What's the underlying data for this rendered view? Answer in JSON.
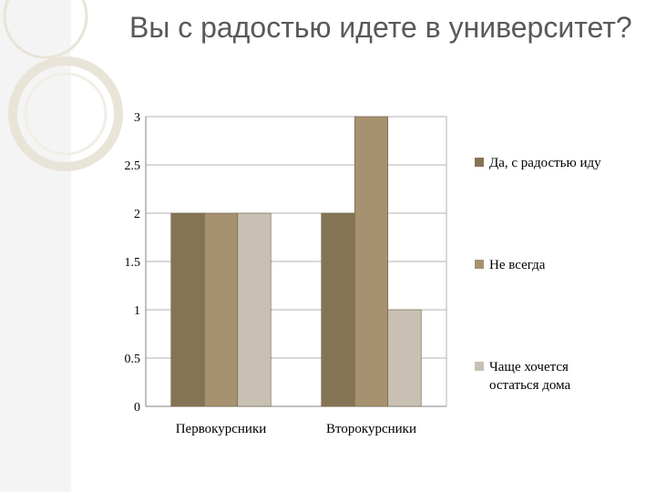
{
  "slide": {
    "title": "Вы с радостью идете в университет?"
  },
  "colors": {
    "sidebar": "#f4f4f4",
    "deco_ring": "#e9e4d8",
    "grid": "#b3b3b3",
    "axis": "#7f7f7f"
  },
  "chart_data": {
    "type": "bar",
    "categories": [
      "Первокурсники",
      "Второкурсники"
    ],
    "series": [
      {
        "name": "Да, с радостью иду",
        "values": [
          2,
          2
        ],
        "color": "#857454"
      },
      {
        "name": "Не всегда",
        "values": [
          2,
          3
        ],
        "color": "#a69170"
      },
      {
        "name": "Чаще хочется остаться дома",
        "values": [
          2,
          1
        ],
        "color": "#c9c0b4"
      }
    ],
    "yticks": [
      "0",
      "0.5",
      "1",
      "1.5",
      "2",
      "2.5",
      "3"
    ],
    "ylim": [
      0,
      3
    ],
    "grid": true,
    "legend_position": "right"
  }
}
